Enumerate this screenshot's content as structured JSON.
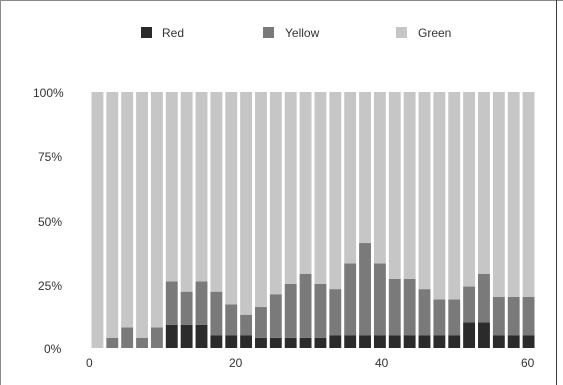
{
  "chart_data": {
    "type": "bar",
    "stacked": true,
    "normalized_percent": true,
    "x": [
      1,
      3,
      5,
      7,
      9,
      11,
      13,
      15,
      17,
      19,
      21,
      23,
      25,
      27,
      29,
      31,
      33,
      35,
      37,
      39,
      41,
      43,
      45,
      47,
      49,
      51,
      53,
      55,
      57,
      59
    ],
    "series": [
      {
        "name": "Red",
        "color": "#2b2b2b",
        "values": [
          0,
          0,
          0,
          0,
          0,
          9,
          9,
          9,
          5,
          5,
          5,
          4,
          4,
          4,
          4,
          4,
          5,
          5,
          5,
          5,
          5,
          5,
          5,
          5,
          5,
          10,
          10,
          5,
          5,
          5
        ]
      },
      {
        "name": "Yellow",
        "color": "#7a7a7a",
        "values": [
          0,
          4,
          8,
          4,
          8,
          17,
          13,
          17,
          17,
          12,
          8,
          12,
          17,
          21,
          25,
          21,
          18,
          28,
          36,
          28,
          22,
          22,
          18,
          14,
          14,
          14,
          19,
          15,
          15,
          15
        ]
      },
      {
        "name": "Green",
        "color": "#c6c6c6",
        "values": [
          100,
          96,
          92,
          96,
          92,
          74,
          78,
          74,
          78,
          83,
          87,
          84,
          79,
          75,
          71,
          75,
          77,
          67,
          59,
          67,
          73,
          73,
          77,
          81,
          81,
          76,
          71,
          80,
          80,
          80
        ]
      }
    ],
    "xlim": [
      0,
      60
    ],
    "ylim": [
      0,
      100
    ],
    "xticks": [
      "0",
      "20",
      "40",
      "60"
    ],
    "yticks": [
      "0%",
      "25%",
      "50%",
      "75%",
      "100%"
    ],
    "legend": [
      "Red",
      "Yellow",
      "Green"
    ],
    "legend_position": "top"
  }
}
